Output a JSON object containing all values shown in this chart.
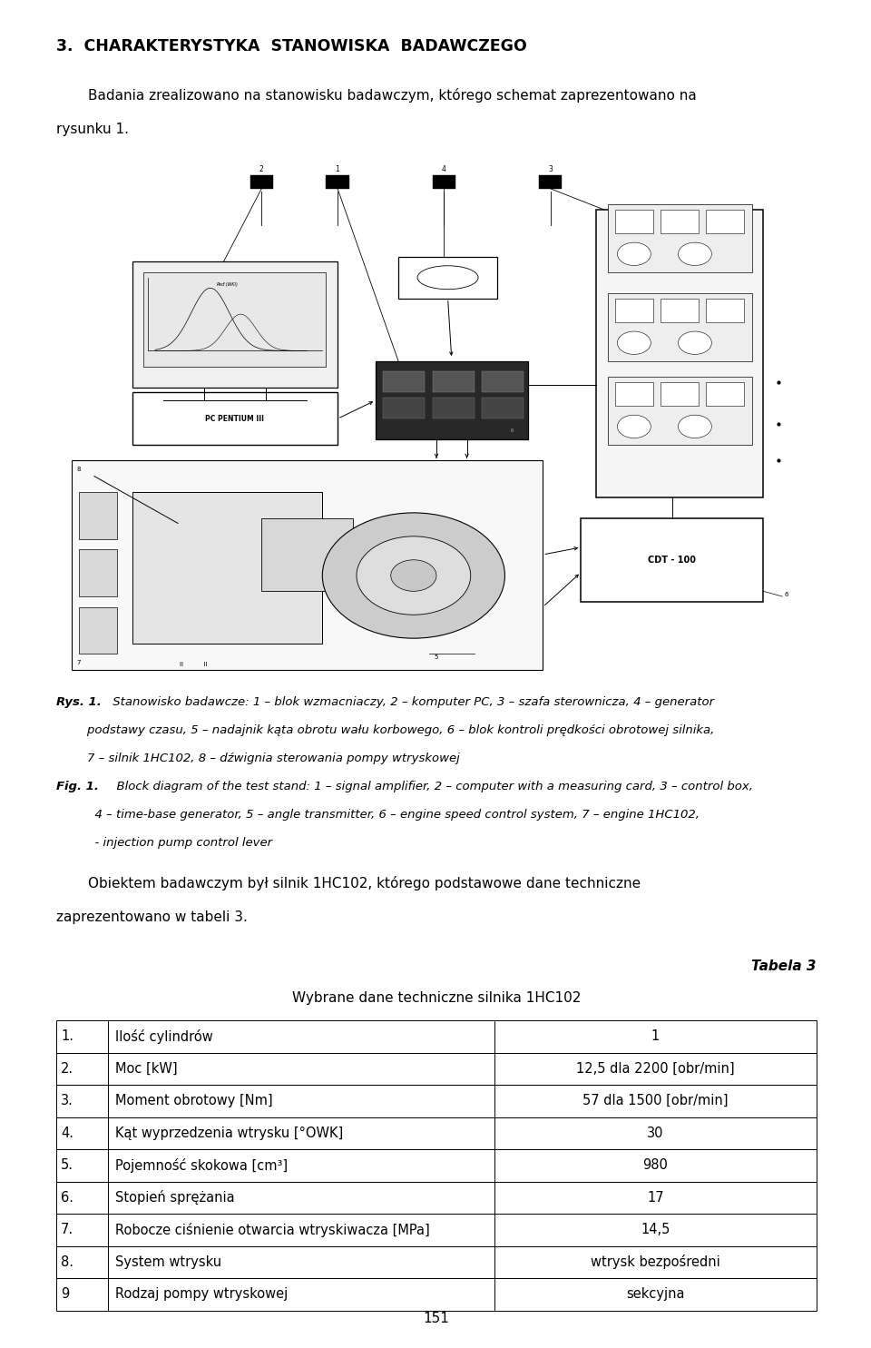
{
  "page_width": 9.6,
  "page_height": 14.85,
  "dpi": 100,
  "bg_color": "#ffffff",
  "ml": 0.62,
  "mr": 9.0,
  "heading": "3.  CHARAKTERYSTYKA  STANOWISKA  BADAWCZEGO",
  "heading_fontsize": 12.5,
  "paragraph1_line1": "Badania zrealizowano na stanowisku badawczym, którego schemat zaprezentowano na",
  "paragraph1_line2": "rysunku 1.",
  "para1_fontsize": 11,
  "rys_bold": "Rys. 1.",
  "rys_text": " Stanowisko badawcze: 1 – blok wzmacniaczy, 2 – komputer PC, 3 – szafa sterownicza, 4 – generator",
  "rys_line2": "        podstawy czasu, 5 – nadajnik kąta obrotu wału korbowego, 6 – blok kontroli prędkości obrotowej silnika,",
  "rys_line3": "        7 – silnik 1HC102, 8 – dźwignia sterowania pompy wtryskowej",
  "fig_bold": "Fig. 1.",
  "fig_text": "  Block diagram of the test stand: 1 – signal amplifier, 2 – computer with a measuring card, 3 – control box,",
  "fig_line2": "          4 – time-base generator, 5 – angle transmitter, 6 – engine speed control system, 7 – engine 1HC102,",
  "fig_line3": "          - injection pump control lever",
  "paragraph2_line1": "Obiektem badawczym był silnik 1HC102, którego podstawowe dane techniczne",
  "paragraph2_line2": "zaprezentowano w tabeli 3.",
  "tabela_label": "Tabela 3",
  "table_title": "Wybrane dane techniczne silnika 1HC102",
  "table_rows": [
    [
      "1.",
      "Ilość cylindrów",
      "1"
    ],
    [
      "2.",
      "Moc [kW]",
      "12,5 dla 2200 [obr/min]"
    ],
    [
      "3.",
      "Moment obrotowy [Nm]",
      "57 dla 1500 [obr/min]"
    ],
    [
      "4.",
      "Kąt wyprzedzenia wtrysku [°OWK]",
      "30"
    ],
    [
      "5.",
      "Pojemność skokowa [cm³]",
      "980"
    ],
    [
      "6.",
      "Stopień sprężania",
      "17"
    ],
    [
      "7.",
      "Robocze ciśnienie otwarcia wtryskiwacza [MPa]",
      "14,5"
    ],
    [
      "8.",
      "System wtrysku",
      "wtrysk bezpośredni"
    ],
    [
      "9",
      "Rodzaj pompy wtryskowej",
      "sekcyjna"
    ]
  ],
  "page_number": "151",
  "caption_fontsize": 9.5,
  "table_fontsize": 10.5
}
